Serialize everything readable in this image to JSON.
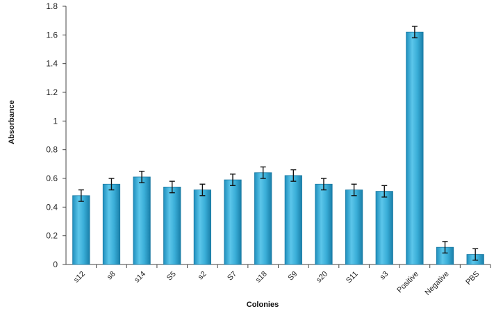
{
  "chart_data": {
    "type": "bar",
    "title": "",
    "xlabel": "Colonies",
    "ylabel": "Absorbance",
    "ylim": [
      0,
      1.8
    ],
    "yticks": [
      "0",
      "0.2",
      "0.4",
      "0.6",
      "0.8",
      "1",
      "1.2",
      "1.4",
      "1.6",
      "1.8"
    ],
    "grid": false,
    "legend": "none",
    "bar_color": "#3aaed8",
    "categories": [
      "s12",
      "s8",
      "s14",
      "S5",
      "s2",
      "S7",
      "s18",
      "S9",
      "s20",
      "S11",
      "s3",
      "Positive",
      "Negative",
      "PBS"
    ],
    "values": [
      0.48,
      0.56,
      0.61,
      0.54,
      0.52,
      0.59,
      0.64,
      0.62,
      0.56,
      0.52,
      0.51,
      1.62,
      0.12,
      0.07
    ],
    "errors": [
      0.04,
      0.04,
      0.04,
      0.04,
      0.04,
      0.04,
      0.04,
      0.04,
      0.04,
      0.04,
      0.04,
      0.04,
      0.04,
      0.04
    ]
  }
}
